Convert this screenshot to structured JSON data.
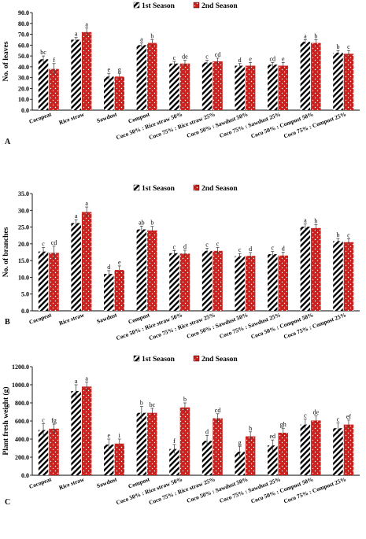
{
  "chart_data": [
    {
      "type": "bar",
      "panel_label": "A",
      "ylabel": "No. of leaves",
      "ylim": [
        0,
        90
      ],
      "yticks": [
        "0.0",
        "10.0",
        "20.0",
        "30.0",
        "40.0",
        "50.0",
        "60.0",
        "70.0",
        "80.0",
        "90.0"
      ],
      "legend_position": "top",
      "categories": [
        "Cocopeat",
        "Rice straw",
        "Sawdust",
        "Compost",
        "Coco 50% : Rice straw 50%",
        "Coco 75% : Rice straw 25%",
        "Coco 50% : Sawdust 50%",
        "Coco 75% : Sawdust 25%",
        "Coco 50% : Compost 50%",
        "Coco 75% : Compost 25%"
      ],
      "series": [
        {
          "name": "1st Season",
          "values": [
            47,
            65,
            31,
            60,
            43,
            44,
            41,
            42,
            63,
            53
          ],
          "errors": [
            3,
            2,
            3,
            2,
            2,
            2,
            2,
            2,
            2,
            2
          ],
          "letters": [
            "bc",
            "a",
            "e",
            "a",
            "c",
            "c",
            "d",
            "cd",
            "a",
            "b"
          ]
        },
        {
          "name": "2nd Season",
          "values": [
            38,
            72,
            31,
            62,
            43,
            45,
            41,
            41,
            62,
            52
          ],
          "errors": [
            5,
            4,
            3,
            3,
            3,
            3,
            3,
            3,
            3,
            3
          ],
          "letters": [
            "f",
            "a",
            "g",
            "b",
            "de",
            "cd",
            "e",
            "e",
            "b",
            "c"
          ]
        }
      ]
    },
    {
      "type": "bar",
      "panel_label": "B",
      "ylabel": "No. of branches",
      "ylim": [
        0,
        35
      ],
      "yticks": [
        "0.0",
        "5.0",
        "10.0",
        "15.0",
        "20.0",
        "25.0",
        "30.0",
        "35.0"
      ],
      "legend_position": "top",
      "categories": [
        "Cocopeat",
        "Rice straw",
        "Sawdust",
        "Compost",
        "Coco 50% : Rice straw 50%",
        "Coco 75% : Rice straw 25%",
        "Coco 50% : Sawdust 50%",
        "Coco 75% : Sawdust 25%",
        "Coco 50% : Compost 50%",
        "Coco 75% : Compost 25%"
      ],
      "series": [
        {
          "name": "1st Season",
          "values": [
            17.7,
            26.2,
            11.0,
            24.3,
            17.2,
            17.9,
            16.3,
            16.9,
            25.1,
            20.8
          ],
          "errors": [
            1.2,
            1.0,
            1.0,
            1.0,
            0.8,
            0.8,
            0.8,
            0.8,
            0.8,
            0.8
          ],
          "letters": [
            "c",
            "a",
            "d",
            "ab",
            "c",
            "c",
            "c",
            "c",
            "a",
            "b"
          ]
        },
        {
          "name": "2nd Season",
          "values": [
            17.3,
            29.5,
            12.2,
            24.0,
            17.1,
            17.9,
            16.4,
            16.5,
            24.7,
            20.5
          ],
          "errors": [
            2.0,
            1.5,
            1.2,
            1.2,
            1.0,
            1.0,
            1.0,
            1.0,
            1.0,
            1.0
          ],
          "letters": [
            "cd",
            "a",
            "e",
            "b",
            "d",
            "c",
            "d",
            "d",
            "b",
            "c"
          ]
        }
      ]
    },
    {
      "type": "bar",
      "panel_label": "C",
      "ylabel": "Plant fresh weight (g)",
      "ylim": [
        0,
        1200
      ],
      "yticks": [
        "0.0",
        "200.0",
        "400.0",
        "600.0",
        "800.0",
        "1000.0",
        "1200.0"
      ],
      "legend_position": "top",
      "categories": [
        "Cocopeat",
        "Rice straw",
        "Sawdust",
        "Compost",
        "Coco 50% : Rice straw 50%",
        "Coco 75% : Rice straw 25%",
        "Coco 50% : Sawdust 50%",
        "Coco 75% : Sawdust 25%",
        "Coco 50% : Compost 50%",
        "Coco 75% : Compost 25%"
      ],
      "series": [
        {
          "name": "1st Season",
          "values": [
            500,
            930,
            340,
            690,
            290,
            380,
            260,
            330,
            560,
            520
          ],
          "errors": [
            70,
            70,
            60,
            70,
            50,
            60,
            60,
            60,
            60,
            60
          ],
          "letters": [
            "c",
            "a",
            "e",
            "b",
            "f",
            "d",
            "g",
            "ed",
            "c",
            "c"
          ]
        },
        {
          "name": "2nd Season",
          "values": [
            515,
            980,
            350,
            690,
            750,
            630,
            430,
            470,
            605,
            560
          ],
          "errors": [
            50,
            50,
            50,
            50,
            50,
            50,
            50,
            50,
            50,
            50
          ],
          "letters": [
            "fg",
            "a",
            "i",
            "bc",
            "b",
            "cd",
            "h",
            "gh",
            "de",
            "ef"
          ]
        }
      ]
    }
  ]
}
